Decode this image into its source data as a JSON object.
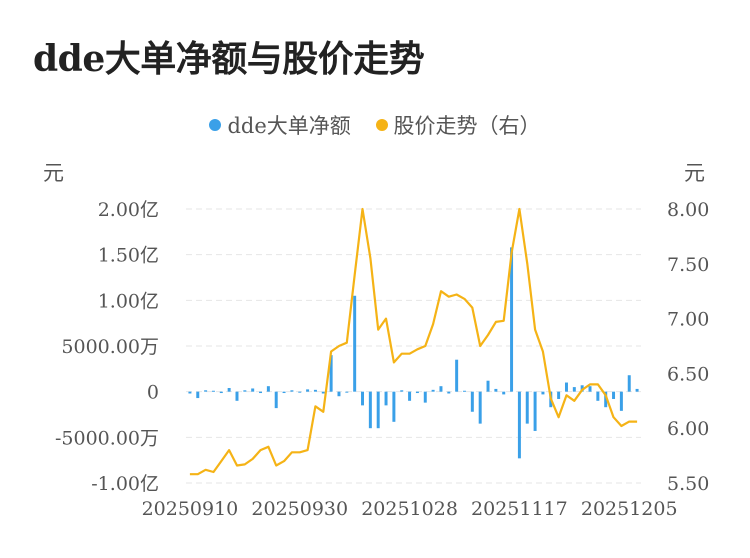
{
  "title": "dde大单净额与股价走势",
  "legend": {
    "series1": "dde大单净额",
    "series2": "股价走势（右）"
  },
  "units": {
    "left": "元",
    "right": "元"
  },
  "colors": {
    "bar": "#3aa0e8",
    "line": "#f5b316",
    "grid": "#e6e6e6"
  },
  "chart_data": {
    "type": "bar+line",
    "x": [
      "20250910",
      "20250911",
      "20250912",
      "20250915",
      "20250916",
      "20250917",
      "20250918",
      "20250919",
      "20250922",
      "20250923",
      "20250924",
      "20250925",
      "20250926",
      "20250929",
      "20250930",
      "20251009",
      "20251010",
      "20251013",
      "20251014",
      "20251015",
      "20251016",
      "20251017",
      "20251020",
      "20251021",
      "20251022",
      "20251023",
      "20251024",
      "20251027",
      "20251028",
      "20251029",
      "20251030",
      "20251031",
      "20251103",
      "20251104",
      "20251105",
      "20251106",
      "20251107",
      "20251110",
      "20251111",
      "20251112",
      "20251113",
      "20251114",
      "20251117",
      "20251118",
      "20251119",
      "20251120",
      "20251121",
      "20251124",
      "20251125",
      "20251126",
      "20251127",
      "20251128",
      "20251201",
      "20251202",
      "20251203",
      "20251204",
      "20251205",
      "20251208"
    ],
    "x_tick_labels": [
      "20250910",
      "20250930",
      "20251028",
      "20251117",
      "20251205"
    ],
    "left_axis": {
      "ticks": [
        "2.00亿",
        "1.50亿",
        "1.00亿",
        "5000.00万",
        "0",
        "-5000.00万",
        "-1.00亿"
      ],
      "min": -100000000,
      "max": 200000000
    },
    "right_axis": {
      "ticks": [
        "8.00",
        "7.50",
        "7.00",
        "6.50",
        "6.00",
        "5.50"
      ],
      "min": 5.5,
      "max": 8.0
    },
    "series": [
      {
        "name": "dde大单净额",
        "type": "bar",
        "axis": "left",
        "values": [
          -2000000,
          -7000000,
          1500000,
          1000000,
          -1500000,
          4000000,
          -10000000,
          1500000,
          3500000,
          -1500000,
          6000000,
          -18000000,
          -1500000,
          1500000,
          -1000000,
          2500000,
          2000000,
          -2000000,
          40000000,
          -5000000,
          -1000000,
          105000000,
          -15000000,
          -40000000,
          -40000000,
          -15000000,
          -33000000,
          1500000,
          -10000000,
          -1500000,
          -12000000,
          2000000,
          6000000,
          -2000000,
          35000000,
          1000000,
          -22000000,
          -35000000,
          12000000,
          3000000,
          -3000000,
          158000000,
          -73000000,
          -35000000,
          -43000000,
          -3000000,
          -17000000,
          -8000000,
          10000000,
          5000000,
          7000000,
          6000000,
          -10000000,
          -17000000,
          -8000000,
          -21000000,
          18000000,
          3000000
        ]
      },
      {
        "name": "股价走势（右）",
        "type": "line",
        "axis": "right",
        "values": [
          5.58,
          5.58,
          5.62,
          5.6,
          5.7,
          5.8,
          5.66,
          5.67,
          5.72,
          5.8,
          5.83,
          5.66,
          5.7,
          5.78,
          5.78,
          5.8,
          6.2,
          6.15,
          6.7,
          6.75,
          6.78,
          7.4,
          8.0,
          7.55,
          6.9,
          7.0,
          6.6,
          6.68,
          6.68,
          6.72,
          6.75,
          6.95,
          7.25,
          7.2,
          7.22,
          7.18,
          7.1,
          6.75,
          6.85,
          6.97,
          6.98,
          7.6,
          8.0,
          7.5,
          6.9,
          6.7,
          6.27,
          6.1,
          6.3,
          6.25,
          6.35,
          6.4,
          6.4,
          6.3,
          6.1,
          6.02,
          6.06,
          6.06
        ]
      }
    ],
    "grid": true,
    "legend_position": "top-center"
  }
}
